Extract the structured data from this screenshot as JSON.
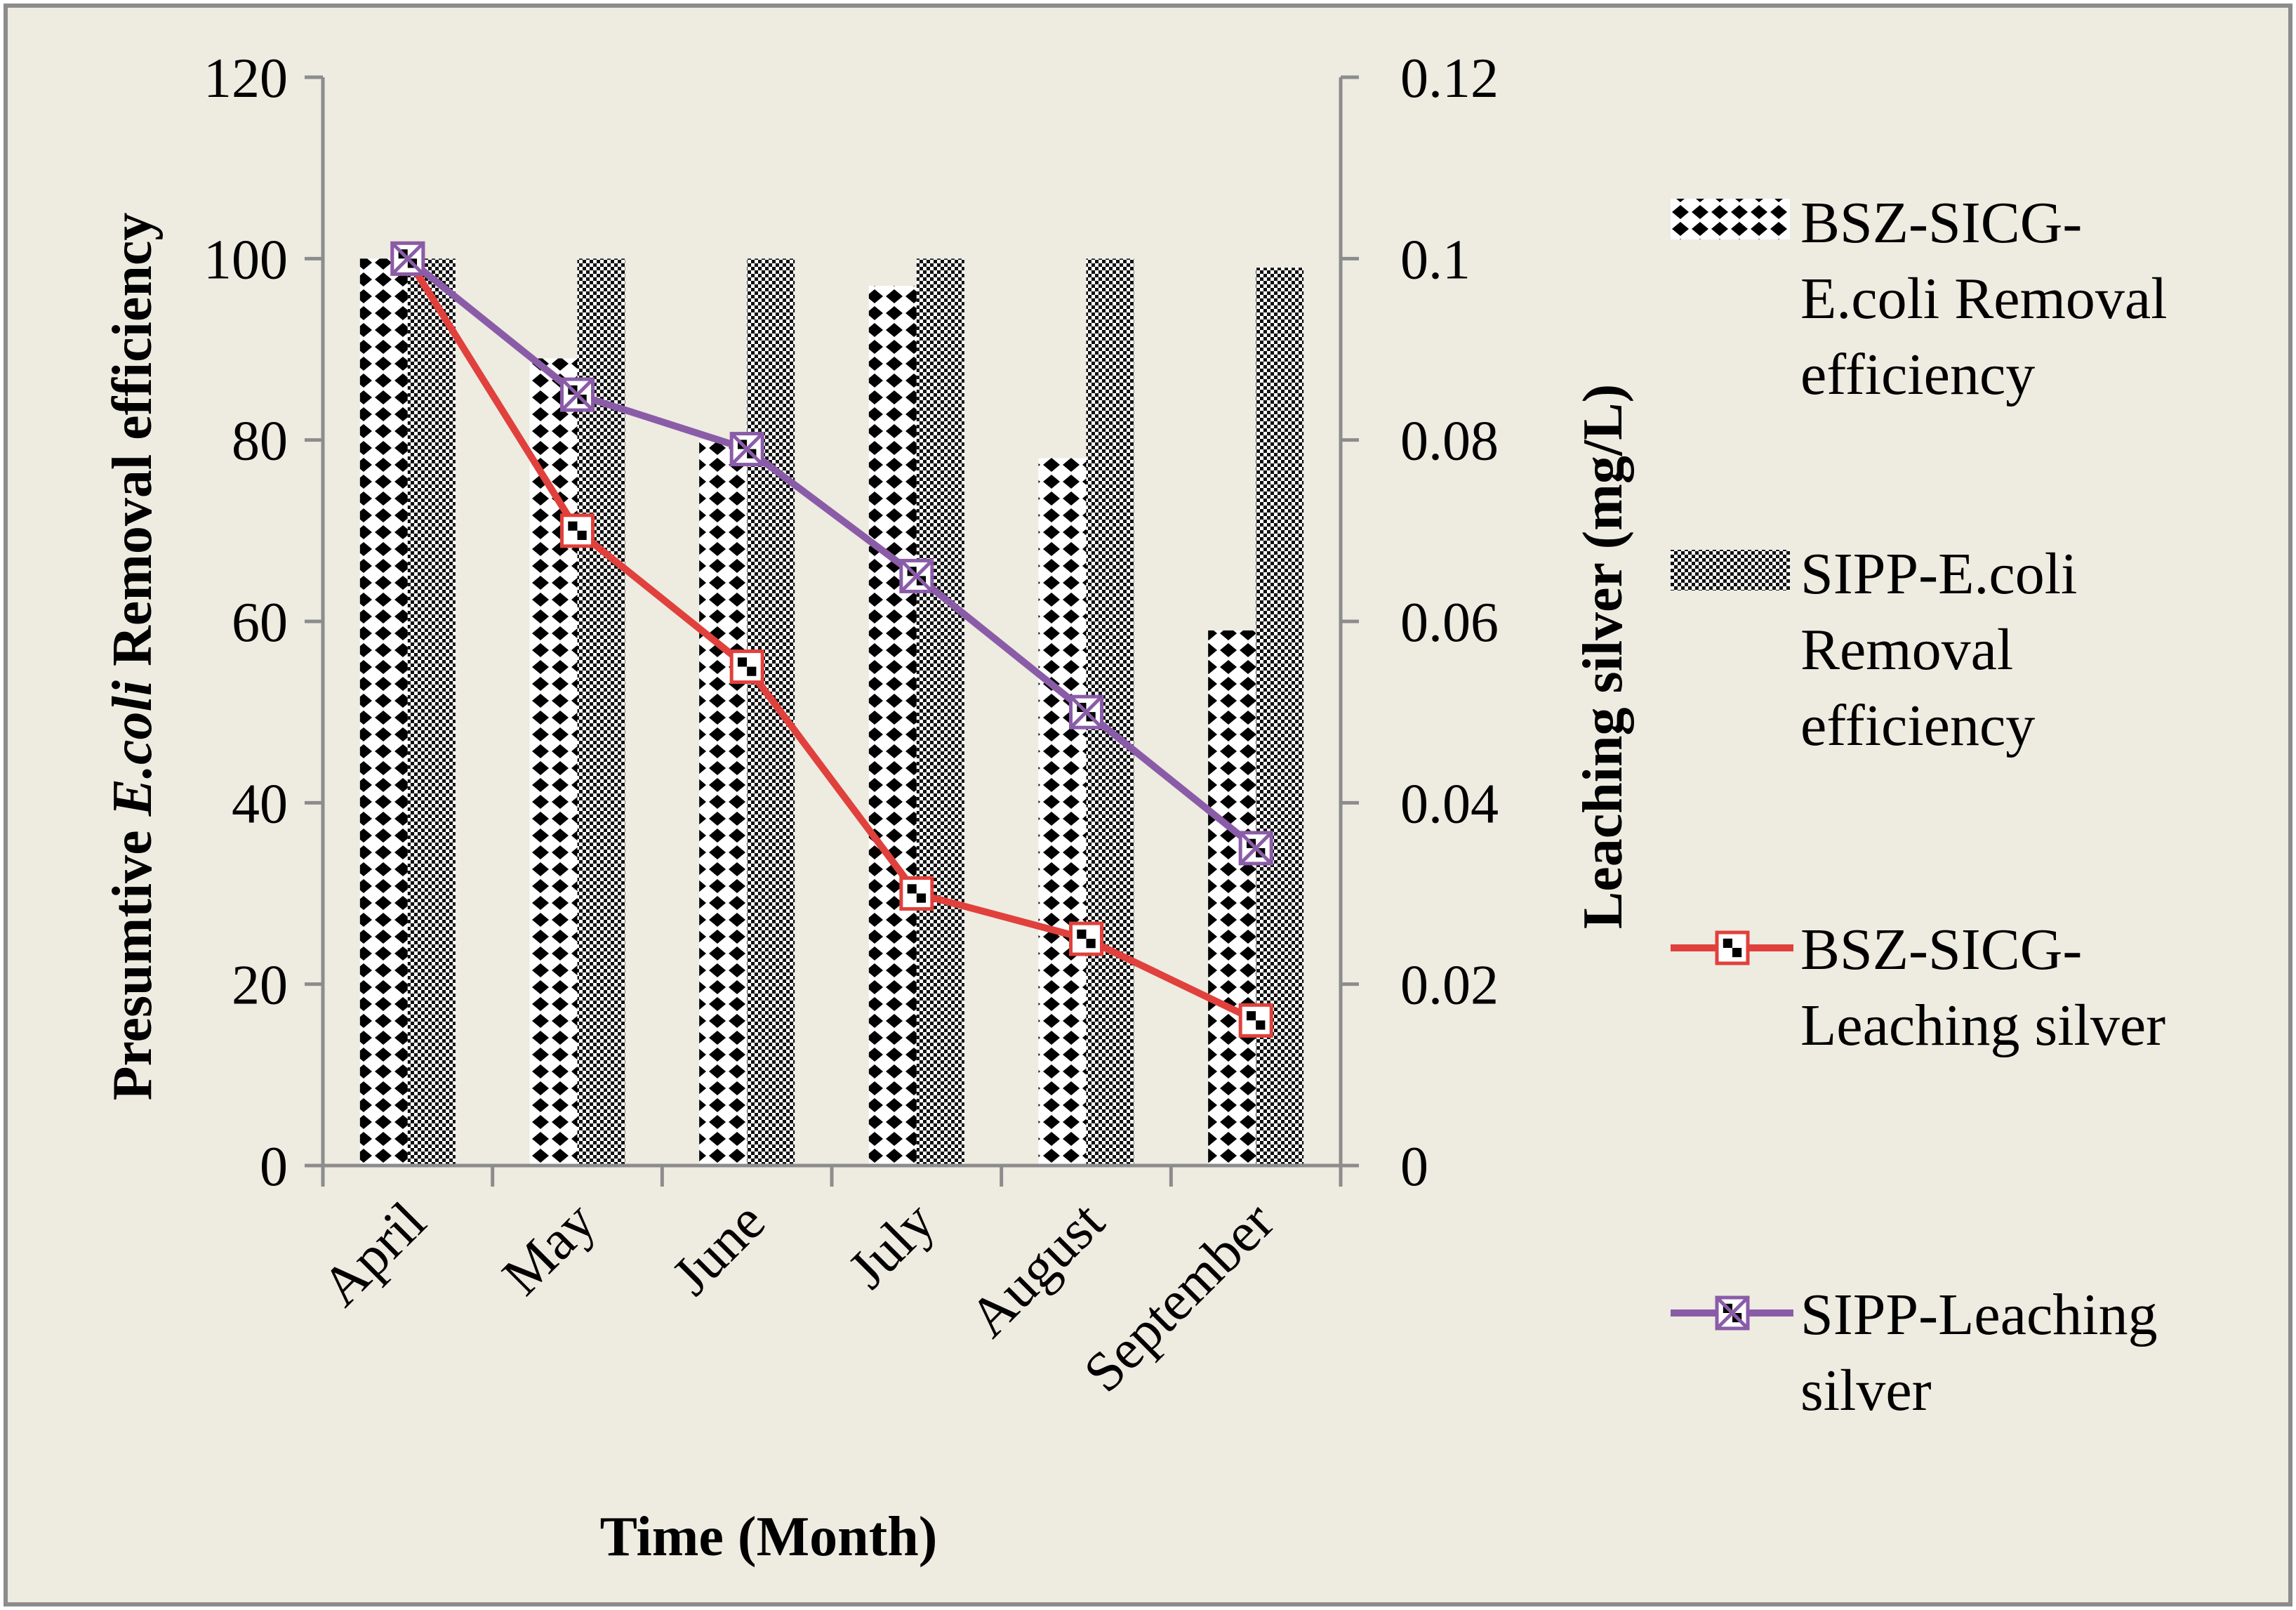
{
  "chart_data": {
    "type": "bar",
    "categories": [
      "April",
      "May",
      "June",
      "July",
      "August",
      "September"
    ],
    "series": [
      {
        "name": "BSZ-SICG-E.coli Removal efficiency",
        "kind": "bar",
        "axis": "left",
        "values": [
          100,
          89,
          80,
          97,
          78,
          59
        ]
      },
      {
        "name": "SIPP-E.coli Removal efficiency",
        "kind": "bar",
        "axis": "left",
        "values": [
          100,
          100,
          100,
          100,
          100,
          99
        ]
      },
      {
        "name": "BSZ-SICG-Leaching silver",
        "kind": "line",
        "axis": "right",
        "color": "#e0413c",
        "values": [
          0.1,
          0.07,
          0.055,
          0.03,
          0.025,
          0.016
        ]
      },
      {
        "name": "SIPP-Leaching silver",
        "kind": "line",
        "axis": "right",
        "color": "#8a5ca8",
        "values": [
          0.1,
          0.085,
          0.079,
          0.065,
          0.05,
          0.035
        ]
      }
    ],
    "xlabel": "Time (Month)",
    "ylabel_parts": [
      "Presumtive ",
      "E.coli",
      " Removal efficiency"
    ],
    "y2label": "Leaching silver (mg/L)",
    "ylim": [
      0,
      120
    ],
    "y2lim": [
      0,
      0.12
    ],
    "yticks": [
      "0",
      "20",
      "40",
      "60",
      "80",
      "100",
      "120"
    ],
    "y2ticks": [
      "0",
      "0.02",
      "0.04",
      "0.06",
      "0.08",
      "0.1",
      "0.12"
    ],
    "legend_labels": [
      [
        "BSZ-SICG-",
        "E.coli Removal",
        "efficiency"
      ],
      [
        "SIPP-E.coli",
        "Removal",
        "efficiency"
      ],
      [
        "BSZ-SICG-",
        "Leaching silver"
      ],
      [
        "SIPP-Leaching",
        "silver"
      ]
    ],
    "legend_position": "right",
    "background": "#eeebe1"
  }
}
